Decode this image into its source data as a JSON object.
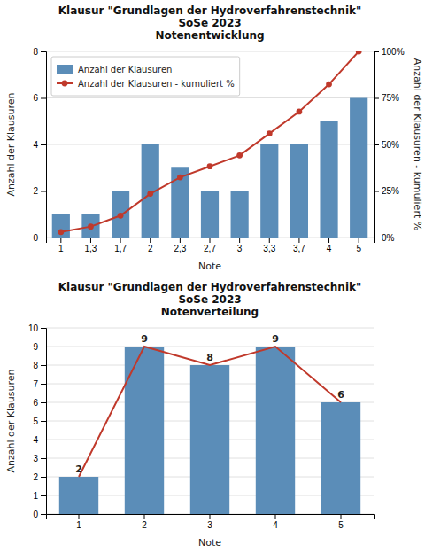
{
  "chart_data": [
    {
      "type": "bar",
      "title": "Klausur \"Grundlagen der Hydroverfahrenstechnik\"\nSoSe 2023",
      "subtitle": "Notenentwicklung",
      "x_label": "Note",
      "y_label": "Anzahl der Klausuren",
      "y2_label": "Anzahl der Klausuren - kumuliert %",
      "categories": [
        "1",
        "1,3",
        "1,7",
        "2",
        "2,3",
        "2,7",
        "3",
        "3,3",
        "3,7",
        "4",
        "5"
      ],
      "series": [
        {
          "name": "Anzahl der Klausuren",
          "type": "bar",
          "color": "#5B8DB8",
          "values": [
            1,
            1,
            2,
            4,
            3,
            2,
            2,
            4,
            4,
            5,
            6
          ]
        },
        {
          "name": "Anzahl der Klausuren - kumuliert %",
          "type": "line",
          "axis": "y2",
          "color": "#C0392B",
          "marker": "circle",
          "values": [
            2.941176470588235,
            5.88235294117647,
            11.76470588235294,
            23.52941176470588,
            32.35294117647059,
            38.23529411764706,
            44.11764705882353,
            55.88235294117647,
            67.6470588235294,
            82.3529411764706,
            100
          ]
        }
      ],
      "ylim": [
        0,
        8
      ],
      "yticks": [
        0,
        2,
        4,
        6,
        8
      ],
      "y2lim": [
        0,
        100
      ],
      "y2ticks": [
        {
          "value": 0,
          "label": "0%"
        },
        {
          "value": 25,
          "label": "25%"
        },
        {
          "value": 50,
          "label": "50%"
        },
        {
          "value": 75,
          "label": "75%"
        },
        {
          "value": 100,
          "label": "100%"
        }
      ],
      "grid": true,
      "legend": "upper left"
    },
    {
      "type": "bar",
      "title": "Klausur \"Grundlagen der Hydroverfahrenstechnik\"\nSoSe 2023",
      "subtitle": "Notenverteilung",
      "x_label": "Note",
      "y_label": "Anzahl der Klausuren",
      "categories": [
        "1",
        "2",
        "3",
        "4",
        "5"
      ],
      "series": [
        {
          "type": "bar",
          "color": "#5B8DB8",
          "values": [
            2,
            9,
            8,
            9,
            6
          ]
        },
        {
          "type": "line",
          "color": "#C0392B",
          "values": [
            2,
            9,
            8,
            9,
            6
          ]
        }
      ],
      "ylim": [
        0,
        10
      ],
      "yticks": [
        0,
        1,
        2,
        3,
        4,
        5,
        6,
        7,
        8,
        9,
        10
      ],
      "grid": true,
      "data_labels": true
    }
  ]
}
